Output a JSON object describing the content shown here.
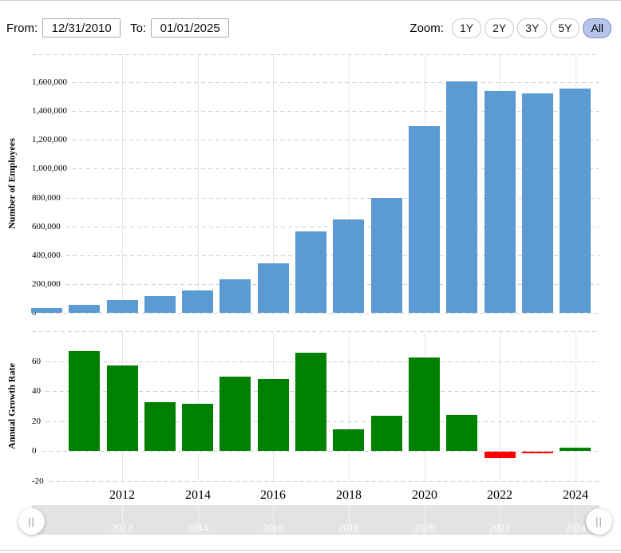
{
  "toolbar": {
    "from_label": "From:",
    "from_value": "12/31/2010",
    "to_label": "To:",
    "to_value": "01/01/2025",
    "zoom_label": "Zoom:",
    "zoom_buttons": [
      "1Y",
      "2Y",
      "3Y",
      "5Y",
      "All"
    ],
    "zoom_active": "All"
  },
  "chart_data": [
    {
      "type": "bar",
      "title": "",
      "ylabel": "Number of Employees",
      "x": [
        2010,
        2011,
        2012,
        2013,
        2014,
        2015,
        2016,
        2017,
        2018,
        2019,
        2020,
        2021,
        2022,
        2023,
        2024
      ],
      "values": [
        33700,
        56200,
        88400,
        117300,
        154100,
        230800,
        341400,
        566000,
        647500,
        798000,
        1298000,
        1608000,
        1541000,
        1525000,
        1556000
      ],
      "bar_color": "#5b9ad2",
      "ylim": [
        0,
        1795000
      ],
      "grid": true,
      "yticks": [
        {
          "v": 0,
          "label": "0"
        },
        {
          "v": 200000,
          "label": "200,000"
        },
        {
          "v": 400000,
          "label": "400,000"
        },
        {
          "v": 600000,
          "label": "600,000"
        },
        {
          "v": 800000,
          "label": "800,000"
        },
        {
          "v": 1000000,
          "label": "1,000,000"
        },
        {
          "v": 1200000,
          "label": "1,200,000"
        },
        {
          "v": 1400000,
          "label": "1,400,000"
        },
        {
          "v": 1600000,
          "label": "1,600,000"
        }
      ]
    },
    {
      "type": "bar",
      "title": "",
      "ylabel": "Annual Growth Rate",
      "x": [
        2011,
        2012,
        2013,
        2014,
        2015,
        2016,
        2017,
        2018,
        2019,
        2020,
        2021,
        2022,
        2023,
        2024
      ],
      "values": [
        66.77,
        57.3,
        32.69,
        31.37,
        49.77,
        47.92,
        65.79,
        14.4,
        23.24,
        62.66,
        23.88,
        -4.17,
        -1.04,
        2.03
      ],
      "positive_color": "#008000",
      "negative_color": "#ff0000",
      "ylim": [
        -24,
        80
      ],
      "grid": true,
      "yticks": [
        {
          "v": -20,
          "label": "-20"
        },
        {
          "v": 0,
          "label": "0"
        },
        {
          "v": 20,
          "label": "20"
        },
        {
          "v": 40,
          "label": "40"
        },
        {
          "v": 60,
          "label": "60"
        }
      ]
    }
  ],
  "xaxis": {
    "tick_years": [
      2012,
      2014,
      2016,
      2018,
      2020,
      2022,
      2024
    ]
  },
  "navigator": {
    "labels": [
      "2012",
      "2014",
      "2016",
      "2018",
      "2020",
      "2022",
      "2024"
    ],
    "handle_glyph": "||"
  },
  "colors": {
    "employees_bar": "#5b9ad2",
    "growth_positive": "#008000",
    "growth_negative": "#ff0000",
    "zoom_active_bg": "#b6c4ec",
    "navigator_bg": "#e3e3e3"
  }
}
